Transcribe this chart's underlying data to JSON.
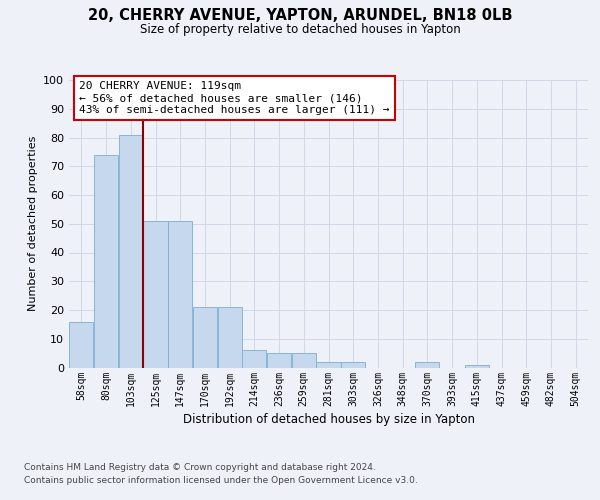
{
  "title": "20, CHERRY AVENUE, YAPTON, ARUNDEL, BN18 0LB",
  "subtitle": "Size of property relative to detached houses in Yapton",
  "xlabel": "Distribution of detached houses by size in Yapton",
  "ylabel": "Number of detached properties",
  "bins": [
    "58sqm",
    "80sqm",
    "103sqm",
    "125sqm",
    "147sqm",
    "170sqm",
    "192sqm",
    "214sqm",
    "236sqm",
    "259sqm",
    "281sqm",
    "303sqm",
    "326sqm",
    "348sqm",
    "370sqm",
    "393sqm",
    "415sqm",
    "437sqm",
    "459sqm",
    "482sqm",
    "504sqm"
  ],
  "bar_values": [
    16,
    74,
    81,
    51,
    51,
    21,
    21,
    6,
    5,
    5,
    2,
    2,
    0,
    0,
    2,
    0,
    1,
    0,
    0,
    0,
    0
  ],
  "bar_color": "#c5d8ed",
  "bar_edge_color": "#7bafd4",
  "grid_color": "#d0d8e8",
  "vline_color": "#8b0000",
  "annotation_text": "20 CHERRY AVENUE: 119sqm\n← 56% of detached houses are smaller (146)\n43% of semi-detached houses are larger (111) →",
  "annotation_box_color": "#ffffff",
  "annotation_box_edge": "#cc0000",
  "ylim": [
    0,
    100
  ],
  "yticks": [
    0,
    10,
    20,
    30,
    40,
    50,
    60,
    70,
    80,
    90,
    100
  ],
  "footer_line1": "Contains HM Land Registry data © Crown copyright and database right 2024.",
  "footer_line2": "Contains public sector information licensed under the Open Government Licence v3.0.",
  "bg_color": "#eef2f8",
  "plot_bg_color": "#eef2f8"
}
